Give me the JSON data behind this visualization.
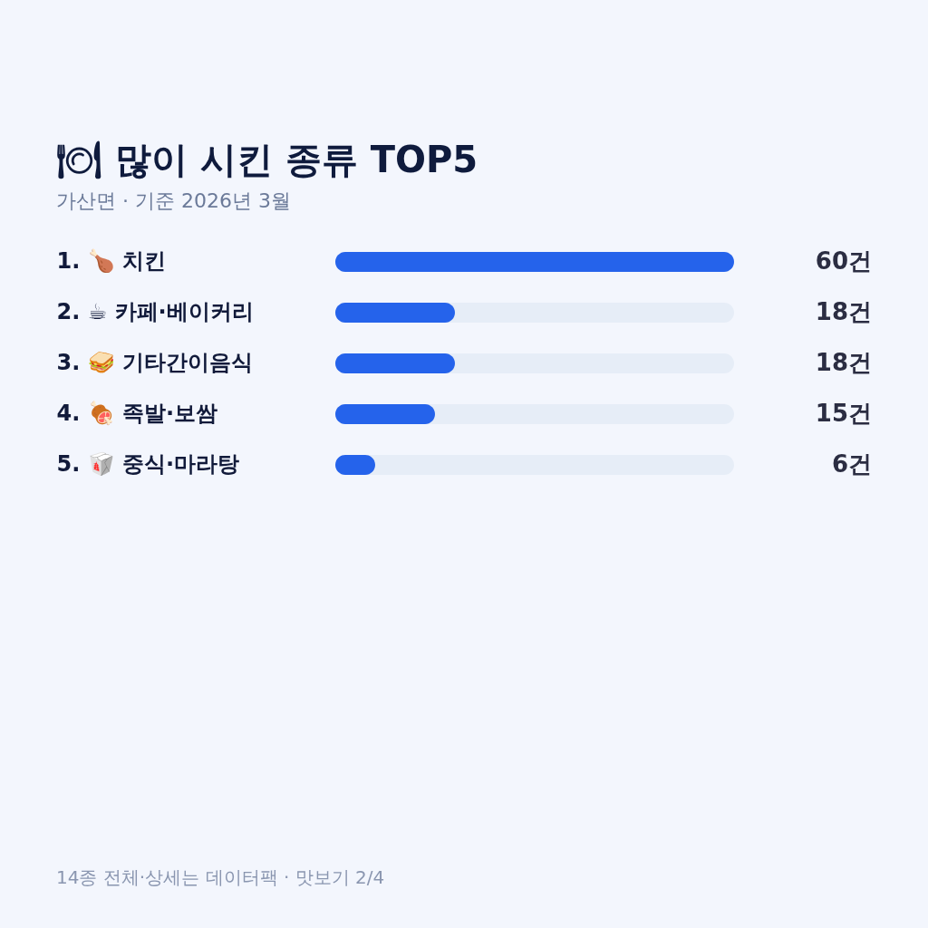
{
  "chart_data": {
    "type": "bar",
    "orientation": "horizontal",
    "title": "🍽 많이 시킨 종류 TOP5",
    "subtitle": "가산면 · 기준 2026년 3월",
    "categories": [
      "1. 🍗 치킨",
      "2. ☕ 카페·베이커리",
      "3. 🥪 기타간이음식",
      "4. 🍖 족발·보쌈",
      "5. 🥡 중식·마라탕"
    ],
    "values": [
      60,
      18,
      18,
      15,
      6
    ],
    "color": "#2563eb",
    "value_labels": [
      "60건",
      "18건",
      "18건",
      "15건",
      "6건"
    ],
    "annotations": [
      "14종 전체·상세는 데이터팩 · 맛보기 2/4"
    ],
    "tick_labels": "y"
  }
}
